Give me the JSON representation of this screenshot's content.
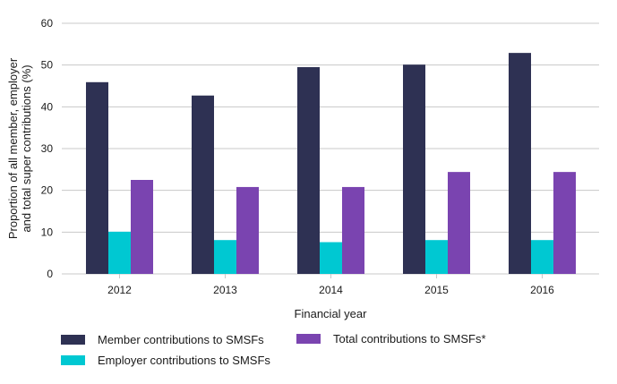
{
  "chart_data": {
    "type": "bar",
    "title": "",
    "xlabel": "Financial year",
    "ylabel_lines": [
      "Proportion of all member, employer",
      "and total super contributions (%)"
    ],
    "ylabel": "Proportion of all member, employer and total super contributions (%)",
    "ylim": [
      0,
      60
    ],
    "yticks": [
      0,
      10,
      20,
      30,
      40,
      50,
      60
    ],
    "grid": true,
    "legend_position": "bottom",
    "categories": [
      "2012",
      "2013",
      "2014",
      "2015",
      "2016"
    ],
    "series": [
      {
        "name": "Member contributions to SMSFs",
        "color": "#2e3153",
        "values": [
          45.9,
          42.7,
          49.5,
          50.1,
          52.9
        ]
      },
      {
        "name": "Employer contributions to SMSFs",
        "color": "#00c8d2",
        "values": [
          10.1,
          8.1,
          7.6,
          8.1,
          8.1
        ]
      },
      {
        "name": "Total contributions to SMSFs*",
        "color": "#7a44b0",
        "values": [
          22.5,
          20.8,
          20.8,
          24.4,
          24.4
        ]
      }
    ]
  }
}
